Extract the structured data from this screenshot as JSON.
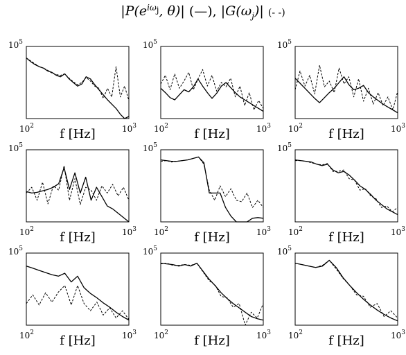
{
  "title": {
    "p_part": "|P(e",
    "p_sup": "iω",
    "p_sup_sub": "j",
    "p_rest": ", θ)|",
    "p_style": "(—),",
    "g_part": "|G(ω",
    "g_sub": "j",
    "g_rest": ")|",
    "g_style": "(- -)"
  },
  "chart_data": {
    "type": "line",
    "layout": "3x3 grid of log-log magnitude plots",
    "xscale": "log",
    "yscale": "log",
    "xlim": [
      100,
      1000
    ],
    "ymax_label": "10^5",
    "xlabel": "f [Hz]",
    "xtick_labels": {
      "min_base": "10",
      "min_exp": "2",
      "max_base": "10",
      "max_exp": "3"
    },
    "ytick_labels": {
      "max_base": "10",
      "max_exp": "5"
    },
    "series_styles": {
      "P": "solid",
      "G": "dashed"
    },
    "panels": [
      {
        "P": [
          0.84,
          0.79,
          0.75,
          0.72,
          0.7,
          0.66,
          0.64,
          0.6,
          0.58,
          0.62,
          0.55,
          0.5,
          0.45,
          0.48,
          0.58,
          0.55,
          0.47,
          0.4,
          0.33,
          0.26,
          0.2,
          0.14,
          0.06,
          0.0,
          0.03
        ],
        "G": [
          0.84,
          0.8,
          0.76,
          0.72,
          0.7,
          0.67,
          0.63,
          0.61,
          0.6,
          0.62,
          0.56,
          0.51,
          0.47,
          0.5,
          0.57,
          0.52,
          0.45,
          0.42,
          0.28,
          0.42,
          0.3,
          0.72,
          0.3,
          0.45,
          0.25
        ]
      },
      {
        "P": [
          0.42,
          0.36,
          0.29,
          0.26,
          0.33,
          0.4,
          0.37,
          0.44,
          0.55,
          0.45,
          0.36,
          0.28,
          0.35,
          0.45,
          0.5,
          0.43,
          0.36,
          0.3,
          0.26,
          0.22,
          0.18,
          0.14,
          0.1
        ],
        "G": [
          0.48,
          0.6,
          0.4,
          0.62,
          0.42,
          0.52,
          0.64,
          0.4,
          0.55,
          0.68,
          0.45,
          0.6,
          0.38,
          0.5,
          0.44,
          0.56,
          0.3,
          0.45,
          0.18,
          0.36,
          0.12,
          0.25,
          0.14
        ]
      },
      {
        "P": [
          0.56,
          0.49,
          0.42,
          0.35,
          0.28,
          0.22,
          0.29,
          0.36,
          0.42,
          0.5,
          0.58,
          0.47,
          0.4,
          0.42,
          0.46,
          0.36,
          0.3,
          0.25,
          0.2,
          0.16,
          0.12,
          0.08
        ],
        "G": [
          0.4,
          0.66,
          0.45,
          0.6,
          0.34,
          0.74,
          0.44,
          0.52,
          0.36,
          0.7,
          0.48,
          0.58,
          0.3,
          0.55,
          0.24,
          0.42,
          0.2,
          0.36,
          0.18,
          0.3,
          0.12,
          0.38
        ]
      },
      {
        "P": [
          0.42,
          0.4,
          0.41,
          0.43,
          0.45,
          0.48,
          0.53,
          0.75,
          0.45,
          0.68,
          0.4,
          0.62,
          0.3,
          0.48,
          0.35,
          0.22,
          0.18,
          0.12,
          0.06,
          0.0
        ],
        "G": [
          0.4,
          0.48,
          0.3,
          0.55,
          0.25,
          0.5,
          0.44,
          0.78,
          0.3,
          0.6,
          0.24,
          0.48,
          0.44,
          0.3,
          0.5,
          0.4,
          0.52,
          0.36,
          0.48,
          0.3
        ]
      },
      {
        "P": [
          0.86,
          0.85,
          0.84,
          0.84,
          0.85,
          0.86,
          0.88,
          0.9,
          0.82,
          0.4,
          0.4,
          0.4,
          0.2,
          0.08,
          0.0,
          0.0,
          0.0,
          0.05,
          0.06,
          0.05
        ],
        "G": [
          0.84,
          0.85,
          0.83,
          0.84,
          0.85,
          0.86,
          0.88,
          0.9,
          0.8,
          0.44,
          0.3,
          0.5,
          0.35,
          0.46,
          0.3,
          0.28,
          0.4,
          0.2,
          0.3,
          0.2
        ]
      },
      {
        "P": [
          0.86,
          0.85,
          0.84,
          0.83,
          0.8,
          0.78,
          0.8,
          0.72,
          0.68,
          0.7,
          0.65,
          0.58,
          0.5,
          0.45,
          0.38,
          0.3,
          0.24,
          0.18,
          0.14,
          0.1
        ],
        "G": [
          0.85,
          0.85,
          0.84,
          0.82,
          0.8,
          0.79,
          0.81,
          0.7,
          0.7,
          0.72,
          0.6,
          0.58,
          0.44,
          0.46,
          0.36,
          0.32,
          0.2,
          0.22,
          0.14,
          0.2
        ]
      },
      {
        "P": [
          0.82,
          0.79,
          0.76,
          0.73,
          0.7,
          0.68,
          0.72,
          0.6,
          0.68,
          0.52,
          0.44,
          0.38,
          0.31,
          0.25,
          0.18,
          0.12,
          0.07
        ],
        "G": [
          0.3,
          0.42,
          0.28,
          0.45,
          0.32,
          0.46,
          0.55,
          0.28,
          0.55,
          0.3,
          0.2,
          0.32,
          0.14,
          0.24,
          0.1,
          0.2,
          0.08
        ]
      },
      {
        "P": [
          0.86,
          0.85,
          0.84,
          0.82,
          0.84,
          0.82,
          0.86,
          0.75,
          0.64,
          0.55,
          0.45,
          0.37,
          0.3,
          0.24,
          0.18,
          0.12,
          0.09,
          0.07
        ],
        "G": [
          0.85,
          0.86,
          0.83,
          0.83,
          0.84,
          0.83,
          0.86,
          0.74,
          0.62,
          0.56,
          0.4,
          0.38,
          0.25,
          0.3,
          0.0,
          0.18,
          0.1,
          0.3
        ]
      },
      {
        "P": [
          0.86,
          0.84,
          0.82,
          0.8,
          0.82,
          0.9,
          0.8,
          0.66,
          0.55,
          0.45,
          0.36,
          0.28,
          0.21,
          0.15,
          0.1,
          0.06
        ],
        "G": [
          0.86,
          0.84,
          0.82,
          0.8,
          0.83,
          0.9,
          0.78,
          0.65,
          0.55,
          0.42,
          0.4,
          0.25,
          0.3,
          0.12,
          0.2,
          0.1
        ]
      }
    ]
  }
}
